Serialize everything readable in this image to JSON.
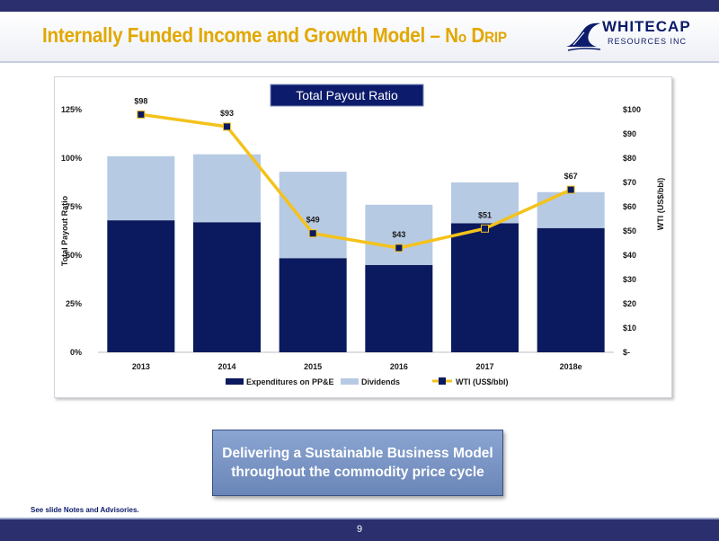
{
  "header": {
    "title_main": "Internally Funded Income and Growth Model – N",
    "title_sc1": "o",
    "title_mid": " D",
    "title_sc2": "rip"
  },
  "logo": {
    "name": "WHITECAP",
    "subtitle": "RESOURCES INC"
  },
  "chart_data": {
    "type": "bar",
    "title": "Total Payout Ratio",
    "categories": [
      "2013",
      "2014",
      "2015",
      "2016",
      "2017",
      "2018e"
    ],
    "series": [
      {
        "name": "Expenditures on PP&E",
        "type": "bar",
        "stacked": true,
        "color": "#0b1a5e",
        "values": [
          68,
          67,
          48.5,
          45,
          66.5,
          64
        ]
      },
      {
        "name": "Dividends",
        "type": "bar",
        "stacked": true,
        "color": "#b7cae3",
        "values": [
          33,
          35,
          44.5,
          31,
          21,
          18.5
        ]
      },
      {
        "name": "WTI (US$/bbl)",
        "type": "line",
        "axis": "right",
        "color": "#f4c21c",
        "values": [
          98,
          93,
          49,
          43,
          51,
          67
        ],
        "labels": [
          "$98",
          "$93",
          "$49",
          "$43",
          "$51",
          "$67"
        ]
      }
    ],
    "ylabel": "Total Payout Ratio",
    "ylim": [
      0,
      125
    ],
    "yticks": [
      "0%",
      "25%",
      "50%",
      "75%",
      "100%",
      "125%"
    ],
    "y2label": "WTI (US$/bbl)",
    "y2lim": [
      0,
      100
    ],
    "y2ticks": [
      "$-",
      "$10",
      "$20",
      "$30",
      "$40",
      "$50",
      "$60",
      "$70",
      "$80",
      "$90",
      "$100"
    ],
    "grid": false,
    "legend": "bottom"
  },
  "callout": {
    "line1": "Delivering a Sustainable Business Model",
    "line2": "throughout the commodity price cycle"
  },
  "footnote": "See slide Notes and Advisories.",
  "page_number": "9"
}
